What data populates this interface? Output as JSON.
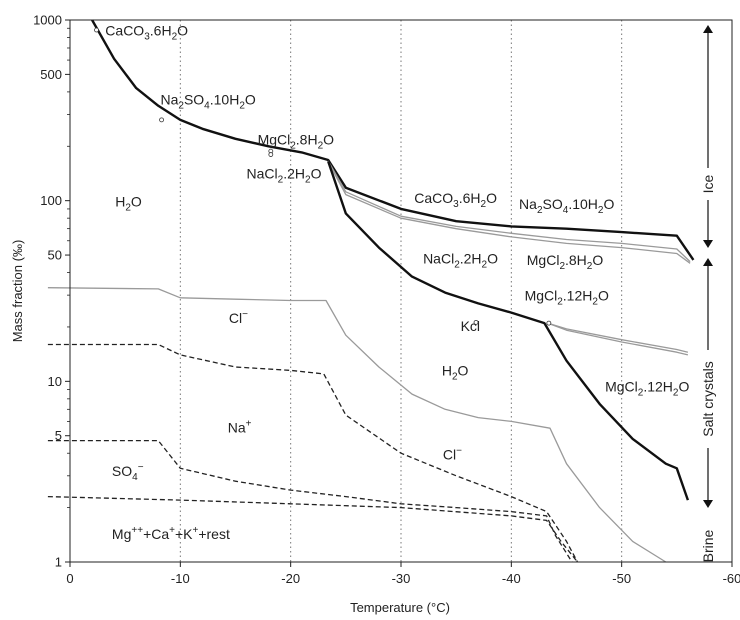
{
  "chart_data": {
    "type": "line",
    "xlabel": "Temperature (°C)",
    "ylabel": "Mass fraction (‰)",
    "xlim": [
      0,
      -60
    ],
    "ylim": [
      1,
      1000
    ],
    "y_scale": "log",
    "grid": {
      "x": "dotted vertical",
      "y": "none"
    },
    "x_ticks": [
      "0",
      "-10",
      "-20",
      "-30",
      "-40",
      "-50",
      "-60"
    ],
    "y_ticks": [
      "1000",
      "500",
      "100",
      "50",
      "10",
      "5",
      "1"
    ],
    "y_tick_values": [
      1000,
      500,
      100,
      50,
      10,
      5,
      1
    ],
    "series": [
      {
        "style": "thick-black",
        "x": [
          -2,
          -4,
          -6,
          -8,
          -10,
          -12,
          -15,
          -18,
          -21,
          -23.4,
          -25,
          -30,
          -35,
          -40,
          -45,
          -50,
          -55,
          -56.5
        ],
        "y": [
          1000,
          610,
          420,
          335,
          280,
          250,
          220,
          200,
          185,
          168,
          118,
          90,
          77,
          72,
          70,
          67,
          64,
          47
        ]
      },
      {
        "style": "thin-gray",
        "x": [
          -23.4,
          -25,
          -30,
          -35,
          -40,
          -45,
          -50,
          -55,
          -56.2
        ],
        "y": [
          166,
          112,
          82,
          72,
          66,
          61,
          58,
          54,
          46
        ]
      },
      {
        "style": "thin-gray",
        "x": [
          -23.4,
          -25,
          -30,
          -35,
          -40,
          -45,
          -50,
          -55,
          -56.2
        ],
        "y": [
          164,
          108,
          80,
          70,
          63,
          58,
          55,
          51,
          45
        ]
      },
      {
        "style": "thick-black",
        "x": [
          -23.4,
          -25,
          -28,
          -31,
          -34,
          -37,
          -40,
          -43,
          -45,
          -48,
          -51,
          -54,
          -55,
          -56
        ],
        "y": [
          165,
          85,
          55,
          38,
          31,
          27,
          24,
          21,
          13,
          7.5,
          4.8,
          3.5,
          3.3,
          2.2
        ]
      },
      {
        "style": "thin-gray",
        "x": [
          -43.3,
          -45,
          -50,
          -55,
          -56
        ],
        "y": [
          21,
          19.5,
          17,
          15,
          14.5
        ]
      },
      {
        "style": "thin-gray",
        "x": [
          -43.3,
          -45,
          -50,
          -55,
          -56
        ],
        "y": [
          21,
          19.2,
          16.5,
          14.5,
          14
        ]
      },
      {
        "style": "thin-gray",
        "x": [
          2,
          -8,
          -10,
          -15,
          -20,
          -23.2,
          -25,
          -28,
          -31,
          -34,
          -37,
          -40,
          -43.5,
          -45,
          -48,
          -51,
          -54
        ],
        "y": [
          33,
          32.5,
          29,
          28.5,
          28,
          28,
          18,
          12,
          8.5,
          7,
          6.3,
          6,
          5.5,
          3.5,
          2,
          1.3,
          1
        ]
      },
      {
        "style": "dashed",
        "x": [
          2,
          -8,
          -10,
          -15,
          -20,
          -23,
          -25,
          -30,
          -35,
          -40,
          -43.2,
          -45,
          -46
        ],
        "y": [
          16,
          16,
          14,
          12,
          11.5,
          11,
          6.5,
          4,
          3,
          2.3,
          1.9,
          1.3,
          1
        ]
      },
      {
        "style": "dashed",
        "x": [
          2,
          -8,
          -10,
          -15,
          -20,
          -25,
          -30,
          -35,
          -40,
          -43.2,
          -44,
          -45.5
        ],
        "y": [
          4.7,
          4.7,
          3.3,
          2.8,
          2.5,
          2.3,
          2.1,
          2.0,
          1.9,
          1.8,
          1.4,
          1
        ]
      },
      {
        "style": "dashed",
        "x": [
          2,
          -10,
          -20,
          -30,
          -40,
          -43.2,
          -44.5,
          -46
        ],
        "y": [
          2.3,
          2.2,
          2.1,
          2.0,
          1.8,
          1.7,
          1.3,
          1
        ]
      }
    ],
    "annotations": [
      {
        "text": "CaCO",
        "sub": "3",
        "rest": ".6H",
        "sub2": "2",
        "rest2": "O",
        "x": -3.2,
        "y": 820
      },
      {
        "text": "Na",
        "sub": "2",
        "rest": "SO",
        "sub2": "4",
        "rest2": ".10H",
        "sub3": "2",
        "rest3": "O",
        "x": -8.2,
        "y": 340
      },
      {
        "text": "MgCl",
        "sub": "2",
        "rest": ".8H",
        "sub2": "2",
        "rest2": "O",
        "x": -17,
        "y": 205
      },
      {
        "text": "NaCl",
        "sub": "2",
        "rest": ".2H",
        "sub2": "2",
        "rest2": "O",
        "x": -16,
        "y": 133
      },
      {
        "text": "H",
        "sub": "2",
        "rest": "O",
        "x": -4.1,
        "y": 93
      },
      {
        "text": "CaCO",
        "sub": "3",
        "rest": ".6H",
        "sub2": "2",
        "rest2": "O",
        "x": -31.2,
        "y": 97
      },
      {
        "text": "Na",
        "sub": "2",
        "rest": "SO",
        "sub2": "4",
        "rest2": ".10H",
        "sub3": "2",
        "rest3": "O",
        "x": -40.7,
        "y": 90
      },
      {
        "text": "NaCl",
        "sub": "2",
        "rest": ".2H",
        "sub2": "2",
        "rest2": "O",
        "x": -32,
        "y": 45
      },
      {
        "text": "MgCl",
        "sub": "2",
        "rest": ".8H",
        "sub2": "2",
        "rest2": "O",
        "x": -41.4,
        "y": 44
      },
      {
        "text": "MgCl",
        "sub": "2",
        "rest": ".12H",
        "sub2": "2",
        "rest2": "O",
        "x": -41.2,
        "y": 28
      },
      {
        "text": "Kcl",
        "x": -35.4,
        "y": 19
      },
      {
        "text": "Cl",
        "sup": "−",
        "x": -14.4,
        "y": 21
      },
      {
        "text": "H",
        "sub": "2",
        "rest": "O",
        "x": -33.7,
        "y": 10.8
      },
      {
        "text": "MgCl",
        "sub": "2",
        "rest": ".12H",
        "sub2": "2",
        "rest2": "O",
        "x": -48.5,
        "y": 8.8
      },
      {
        "text": "Na",
        "sup": "+",
        "x": -14.3,
        "y": 5.2
      },
      {
        "text": "Cl",
        "sup": "−",
        "x": -33.8,
        "y": 3.7
      },
      {
        "text": "SO",
        "sub": "4",
        "sup": "−",
        "x": -3.8,
        "y": 3.0
      },
      {
        "text": "Mg",
        "sup": "++",
        "rest": "+Ca",
        "sup2": "+",
        "rest2": "+K",
        "sup3": "+",
        "rest3": "+rest",
        "x": -3.8,
        "y": 1.34
      }
    ],
    "side_labels": [
      "Ice",
      "Salt crystals",
      "Brine"
    ]
  }
}
